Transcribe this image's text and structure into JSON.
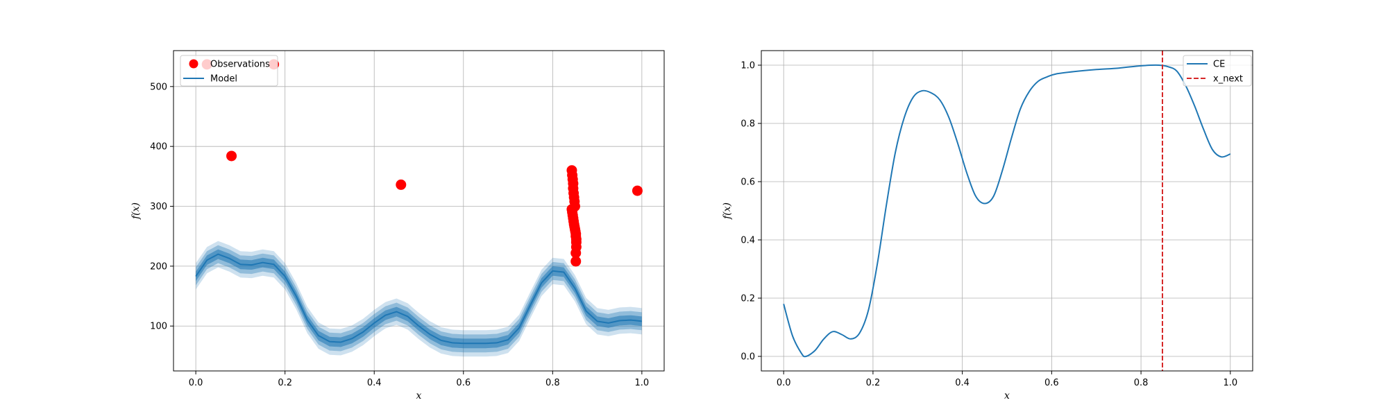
{
  "chart_data": [
    {
      "type": "scatter+line",
      "xlabel": "x",
      "ylabel": "f(x)",
      "xlim": [
        -0.05,
        1.05
      ],
      "ylim": [
        25,
        560
      ],
      "xticks": [
        0.0,
        0.2,
        0.4,
        0.6,
        0.8,
        1.0
      ],
      "xtick_labels": [
        "0.0",
        "0.2",
        "0.4",
        "0.6",
        "0.8",
        "1.0"
      ],
      "yticks": [
        100,
        200,
        300,
        400,
        500
      ],
      "ytick_labels": [
        "100",
        "200",
        "300",
        "400",
        "500"
      ],
      "grid": true,
      "legend_position": "top-left",
      "colors": {
        "model": "#1f77b4",
        "observations": "#ff0000"
      },
      "series": [
        {
          "name": "Observations",
          "kind": "scatter",
          "x": [
            0.025,
            0.08,
            0.175,
            0.46,
            0.99,
            0.843,
            0.844,
            0.845,
            0.846,
            0.846,
            0.847,
            0.848,
            0.849,
            0.85,
            0.843,
            0.844,
            0.845,
            0.846,
            0.847,
            0.848,
            0.849,
            0.85,
            0.851,
            0.852,
            0.852,
            0.853,
            0.853,
            0.853,
            0.852,
            0.852
          ],
          "y": [
            537,
            384,
            537,
            336,
            326,
            360,
            352,
            345,
            338,
            330,
            322,
            315,
            308,
            300,
            295,
            290,
            285,
            280,
            275,
            270,
            266,
            262,
            258,
            254,
            250,
            245,
            240,
            232,
            222,
            208
          ]
        },
        {
          "name": "Model",
          "kind": "line",
          "x": [
            0.0,
            0.025,
            0.05,
            0.075,
            0.1,
            0.125,
            0.15,
            0.175,
            0.2,
            0.225,
            0.25,
            0.275,
            0.3,
            0.325,
            0.35,
            0.375,
            0.4,
            0.425,
            0.45,
            0.475,
            0.5,
            0.525,
            0.55,
            0.575,
            0.6,
            0.625,
            0.65,
            0.675,
            0.7,
            0.725,
            0.75,
            0.775,
            0.8,
            0.825,
            0.85,
            0.875,
            0.9,
            0.925,
            0.95,
            0.975,
            1.0
          ],
          "y": [
            183,
            210,
            220,
            213,
            203,
            202,
            206,
            203,
            183,
            150,
            110,
            84,
            74,
            73,
            79,
            90,
            105,
            118,
            124,
            116,
            100,
            86,
            76,
            72,
            71,
            71,
            71,
            72,
            77,
            97,
            135,
            172,
            192,
            190,
            163,
            125,
            108,
            105,
            109,
            110,
            108
          ]
        }
      ]
    },
    {
      "type": "line",
      "xlabel": "x",
      "ylabel": "f(x)",
      "xlim": [
        -0.05,
        1.05
      ],
      "ylim": [
        -0.05,
        1.05
      ],
      "xticks": [
        0.0,
        0.2,
        0.4,
        0.6,
        0.8,
        1.0
      ],
      "xtick_labels": [
        "0.0",
        "0.2",
        "0.4",
        "0.6",
        "0.8",
        "1.0"
      ],
      "yticks": [
        0.0,
        0.2,
        0.4,
        0.6,
        0.8,
        1.0
      ],
      "ytick_labels": [
        "0.0",
        "0.2",
        "0.4",
        "0.6",
        "0.8",
        "1.0"
      ],
      "grid": true,
      "legend_position": "top-right",
      "colors": {
        "ce": "#1f77b4",
        "x_next": "#d62728"
      },
      "series": [
        {
          "name": "CE",
          "kind": "line",
          "x": [
            0.0,
            0.02,
            0.04,
            0.05,
            0.07,
            0.09,
            0.11,
            0.13,
            0.15,
            0.17,
            0.19,
            0.21,
            0.23,
            0.25,
            0.27,
            0.29,
            0.31,
            0.33,
            0.35,
            0.37,
            0.39,
            0.41,
            0.43,
            0.45,
            0.47,
            0.49,
            0.51,
            0.53,
            0.55,
            0.57,
            0.59,
            0.61,
            0.65,
            0.7,
            0.75,
            0.8,
            0.84,
            0.86,
            0.88,
            0.9,
            0.92,
            0.94,
            0.96,
            0.98,
            1.0
          ],
          "y": [
            0.18,
            0.07,
            0.01,
            0.0,
            0.02,
            0.06,
            0.085,
            0.075,
            0.06,
            0.08,
            0.16,
            0.32,
            0.52,
            0.7,
            0.82,
            0.89,
            0.912,
            0.905,
            0.88,
            0.82,
            0.73,
            0.63,
            0.55,
            0.525,
            0.55,
            0.64,
            0.75,
            0.85,
            0.91,
            0.945,
            0.96,
            0.97,
            0.978,
            0.985,
            0.99,
            0.998,
            1.0,
            0.995,
            0.98,
            0.93,
            0.86,
            0.78,
            0.71,
            0.685,
            0.695
          ]
        }
      ],
      "vlines": [
        {
          "name": "x_next",
          "x": 0.848,
          "style": "dashed"
        }
      ]
    }
  ]
}
